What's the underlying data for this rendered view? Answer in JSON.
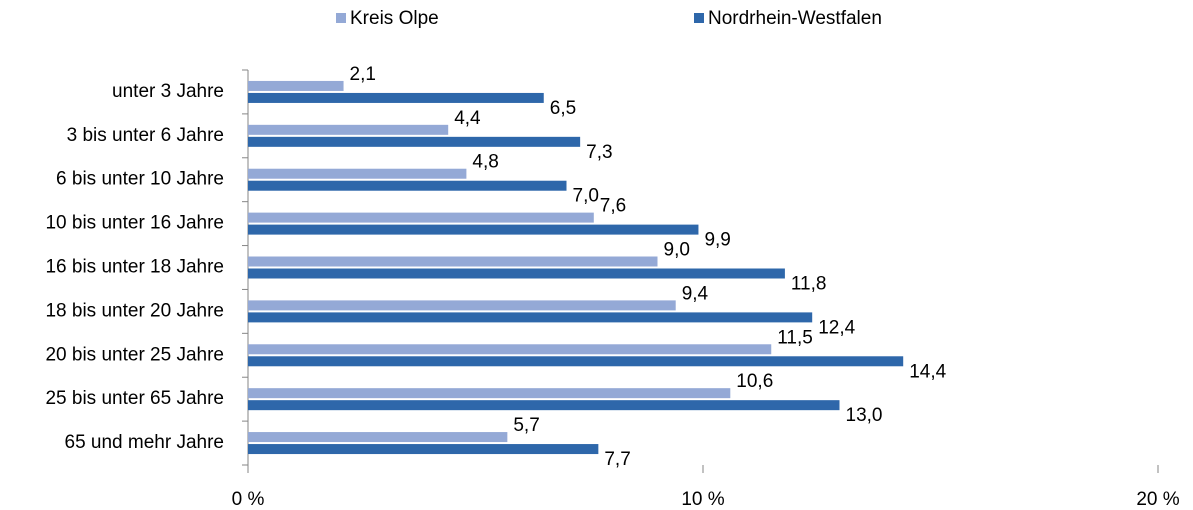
{
  "chart_data": {
    "type": "bar",
    "orientation": "horizontal",
    "categories": [
      "unter 3 Jahre",
      "3 bis unter 6 Jahre",
      "6 bis unter 10 Jahre",
      "10 bis unter 16 Jahre",
      "16 bis unter 18 Jahre",
      "18 bis unter 20 Jahre",
      "20 bis unter 25 Jahre",
      "25 bis unter 65 Jahre",
      "65 und mehr Jahre"
    ],
    "series": [
      {
        "name": "Kreis Olpe",
        "color": "#94a9d6",
        "values": [
          2.1,
          4.4,
          4.8,
          7.6,
          9.0,
          9.4,
          11.5,
          10.6,
          5.7
        ],
        "value_labels": [
          "2,1",
          "4,4",
          "4,8",
          "7,6",
          "9,0",
          "9,4",
          "11,5",
          "10,6",
          "5,7"
        ]
      },
      {
        "name": "Nordrhein-Westfalen",
        "color": "#2e67aa",
        "values": [
          6.5,
          7.3,
          7.0,
          9.9,
          11.8,
          12.4,
          14.4,
          13.0,
          7.7
        ],
        "value_labels": [
          "6,5",
          "7,3",
          "7,0",
          "9,9",
          "11,8",
          "12,4",
          "14,4",
          "13,0",
          "7,7"
        ]
      }
    ],
    "xlim": [
      0,
      20
    ],
    "xticks": [
      {
        "value": 0,
        "label": "0 %"
      },
      {
        "value": 10,
        "label": "10 %"
      },
      {
        "value": 20,
        "label": "20 %"
      }
    ],
    "legend": "top",
    "grid": false
  }
}
